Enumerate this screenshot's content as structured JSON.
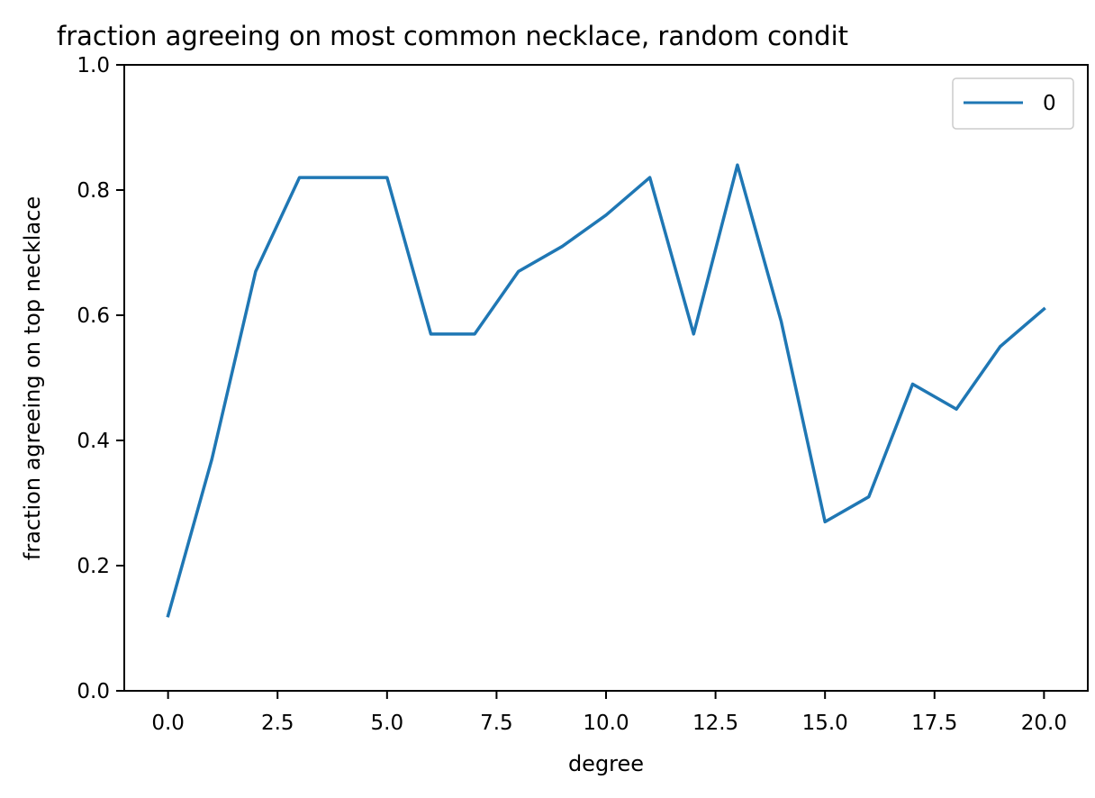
{
  "chart_data": {
    "type": "line",
    "title": "fraction agreeing on most common necklace, random condit",
    "xlabel": "degree",
    "ylabel": "fraction agreeing on top necklace",
    "xlim": [
      -1,
      21
    ],
    "ylim": [
      0,
      1
    ],
    "xticks": [
      0,
      2.5,
      5,
      7.5,
      10,
      12.5,
      15,
      17.5,
      20
    ],
    "xtick_labels": [
      "0.0",
      "2.5",
      "5.0",
      "7.5",
      "10.0",
      "12.5",
      "15.0",
      "17.5",
      "20.0"
    ],
    "yticks": [
      0,
      0.2,
      0.4,
      0.6,
      0.8,
      1.0
    ],
    "ytick_labels": [
      "0.0",
      "0.2",
      "0.4",
      "0.6",
      "0.8",
      "1.0"
    ],
    "grid": false,
    "legend_position": "top-right",
    "series": [
      {
        "name": "0",
        "color": "#1f77b4",
        "x": [
          0,
          1,
          2,
          3,
          4,
          5,
          6,
          7,
          8,
          9,
          10,
          11,
          12,
          13,
          14,
          15,
          16,
          17,
          18,
          19,
          20
        ],
        "y": [
          0.12,
          0.37,
          0.67,
          0.82,
          0.82,
          0.82,
          0.57,
          0.57,
          0.67,
          0.71,
          0.76,
          0.82,
          0.57,
          0.84,
          0.59,
          0.27,
          0.31,
          0.49,
          0.45,
          0.55,
          0.61
        ]
      }
    ]
  }
}
